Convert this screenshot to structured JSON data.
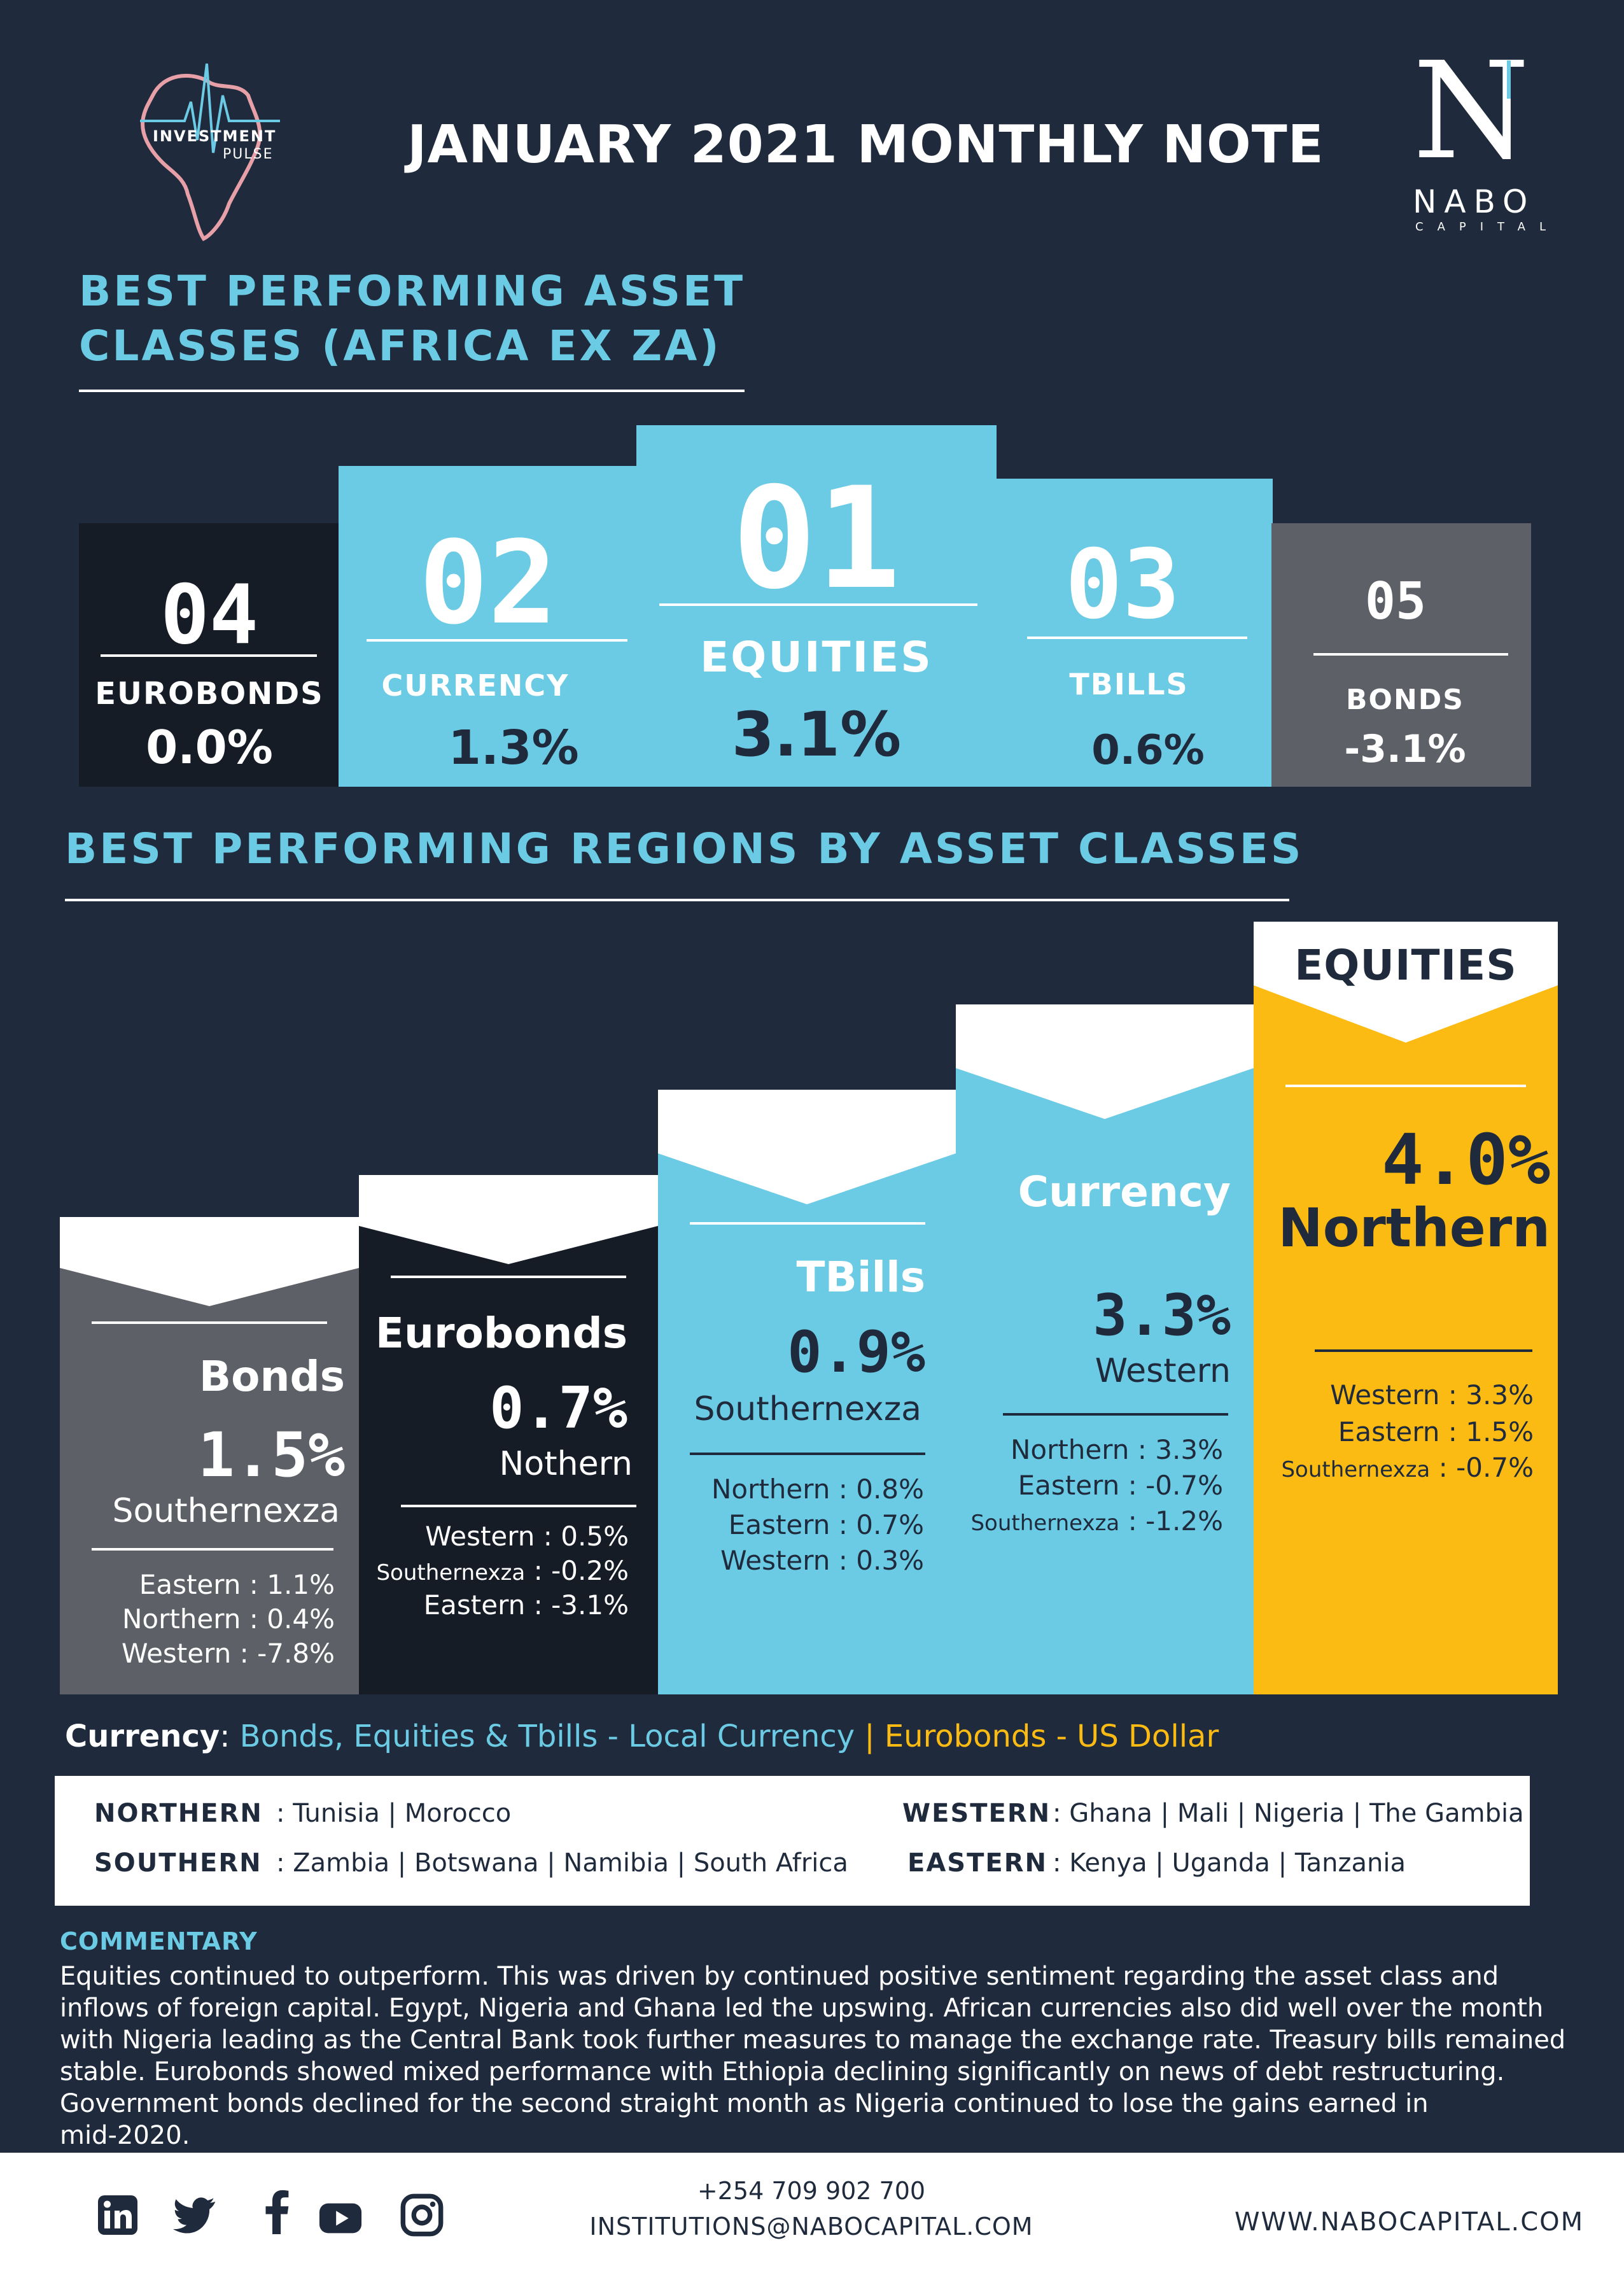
{
  "header": {
    "logo_line1": "INVESTMENT",
    "logo_line2": "PULSE",
    "title": "JANUARY 2021 MONTHLY NOTE",
    "brand_letter": "N",
    "brand_name": "NABO",
    "brand_sub": "CAPITAL"
  },
  "section1": {
    "title_line1": "BEST PERFORMING ASSET",
    "title_line2": "CLASSES (AFRICA EX ZA)",
    "ranks": [
      {
        "rank": "04",
        "name": "EUROBONDS",
        "value": "0.0%"
      },
      {
        "rank": "02",
        "name": "CURRENCY",
        "value": "1.3%"
      },
      {
        "rank": "01",
        "name": "EQUITIES",
        "value": "3.1%"
      },
      {
        "rank": "03",
        "name": "TBILLS",
        "value": "0.6%"
      },
      {
        "rank": "05",
        "name": "BONDS",
        "value": "-3.1%"
      }
    ]
  },
  "section2": {
    "title": "BEST PERFORMING REGIONS BY ASSET CLASSES",
    "columns": [
      {
        "name": "Bonds",
        "value": "1.5%",
        "region": "Southernexza",
        "others": [
          {
            "region": "Eastern",
            "value": "1.1%"
          },
          {
            "region": "Northern",
            "value": "0.4%"
          },
          {
            "region": "Western",
            "value": "-7.8%"
          }
        ]
      },
      {
        "name": "Eurobonds",
        "value": "0.7%",
        "region": "Nothern",
        "others": [
          {
            "region": "Western",
            "value": "0.5%"
          },
          {
            "region": "Southernexza",
            "value": "-0.2%"
          },
          {
            "region": "Eastern",
            "value": "-3.1%"
          }
        ]
      },
      {
        "name": "TBills",
        "value": "0.9%",
        "region": "Southernexza",
        "others": [
          {
            "region": "Northern",
            "value": "0.8%"
          },
          {
            "region": "Eastern",
            "value": "0.7%"
          },
          {
            "region": "Western",
            "value": "0.3%"
          }
        ]
      },
      {
        "name": "Currency",
        "value": "3.3%",
        "region": "Western",
        "others": [
          {
            "region": "Northern",
            "value": "3.3%"
          },
          {
            "region": "Eastern",
            "value": "-0.7%"
          },
          {
            "region": "Southernexza",
            "value": "-1.2%"
          }
        ]
      },
      {
        "name": "EQUITIES",
        "value": "4.0%",
        "region": "Northern",
        "others": [
          {
            "region": "Western",
            "value": "3.3%"
          },
          {
            "region": "Eastern",
            "value": "1.5%"
          },
          {
            "region": "Southernexza",
            "value": "-0.7%"
          }
        ]
      }
    ],
    "sep": ":"
  },
  "currency_note": {
    "label": "Currency",
    "colon": ":",
    "local": " Bonds, Equities & Tbills - Local Currency",
    "pipe": " | ",
    "usd": "Eurobonds - US Dollar"
  },
  "legend": {
    "northern_key": "NORTHERN",
    "northern_val": ": Tunisia | Morocco",
    "southern_key": "SOUTHERN",
    "southern_val": ": Zambia | Botswana | Namibia | South Africa",
    "western_key": "WESTERN",
    "western_val": ": Ghana | Mali | Nigeria | The Gambia",
    "eastern_key": "EASTERN",
    "eastern_val": ": Kenya | Uganda | Tanzania"
  },
  "commentary": {
    "title": "COMMENTARY",
    "lines": [
      "Equities continued to outperform. This was driven by continued positive sentiment regarding the asset class and",
      "inflows of foreign capital. Egypt, Nigeria and Ghana led the upswing. African currencies also did well over the month",
      "with Nigeria leading as the Central Bank took further measures to manage the exchange rate. Treasury bills remained",
      "stable. Eurobonds showed mixed performance with Ethiopia declining significantly on news of debt restructuring.",
      "Government bonds declined for the second straight month as Nigeria continued to lose the gains earned in",
      "mid-2020."
    ]
  },
  "footer": {
    "phone": "+254 709 902 700",
    "email": "INSTITUTIONS@NABOCAPITAL.COM",
    "website": "WWW.NABOCAPITAL.COM",
    "social_colors": {
      "linkedin": "#1f2b3c",
      "fill": "#1f2b3c"
    }
  }
}
